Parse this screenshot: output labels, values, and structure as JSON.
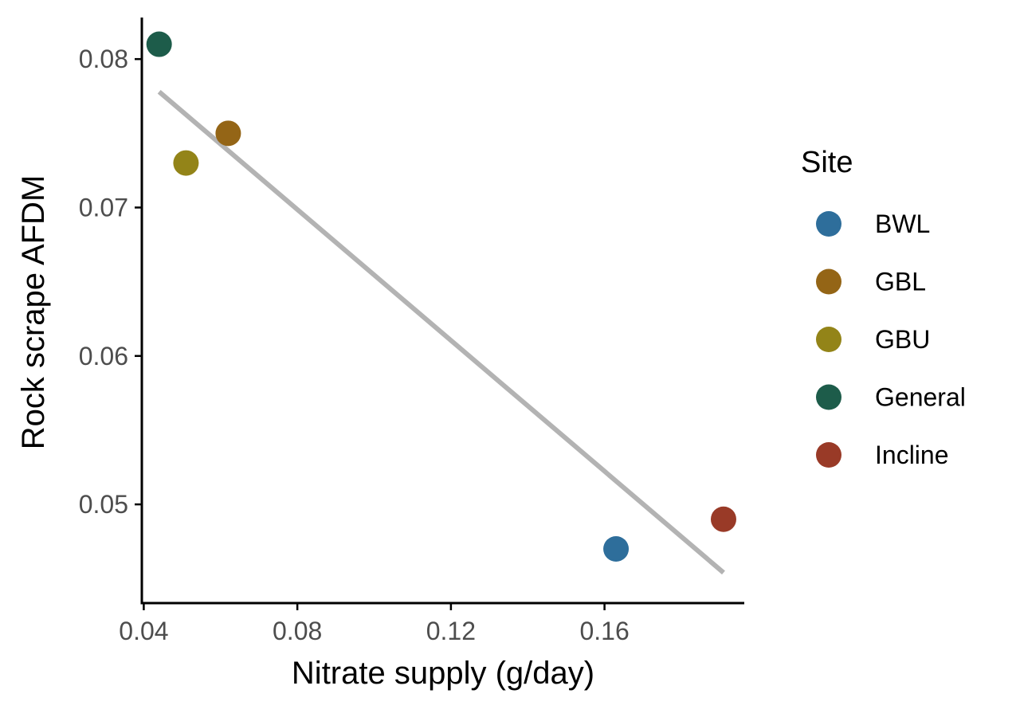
{
  "chart_data": {
    "type": "scatter",
    "xlabel": "Nitrate supply (g/day)",
    "ylabel": "Rock scrape AFDM",
    "xlim": [
      0.0395,
      0.1964
    ],
    "ylim": [
      0.04335,
      0.0828
    ],
    "x_ticks": [
      {
        "value": 0.04,
        "label": "0.04"
      },
      {
        "value": 0.08,
        "label": "0.08"
      },
      {
        "value": 0.12,
        "label": "0.12"
      },
      {
        "value": 0.16,
        "label": "0.16"
      }
    ],
    "y_ticks": [
      {
        "value": 0.05,
        "label": "0.05"
      },
      {
        "value": 0.06,
        "label": "0.06"
      },
      {
        "value": 0.07,
        "label": "0.07"
      },
      {
        "value": 0.08,
        "label": "0.08"
      }
    ],
    "grid": false,
    "legend": {
      "title": "Site",
      "position": "right",
      "entries": [
        {
          "name": "BWL",
          "color": "#2e6e9b"
        },
        {
          "name": "GBL",
          "color": "#946516"
        },
        {
          "name": "GBU",
          "color": "#938418"
        },
        {
          "name": "General",
          "color": "#1d5c4a"
        },
        {
          "name": "Incline",
          "color": "#993a27"
        }
      ]
    },
    "points": [
      {
        "site": "General",
        "x": 0.044,
        "y": 0.081
      },
      {
        "site": "GBL",
        "x": 0.062,
        "y": 0.075
      },
      {
        "site": "GBU",
        "x": 0.051,
        "y": 0.073
      },
      {
        "site": "BWL",
        "x": 0.163,
        "y": 0.047
      },
      {
        "site": "Incline",
        "x": 0.191,
        "y": 0.049
      }
    ],
    "trend_line": {
      "color": "#b3b3b3",
      "x": [
        0.044,
        0.191
      ],
      "y": [
        0.0778,
        0.0454
      ]
    }
  }
}
